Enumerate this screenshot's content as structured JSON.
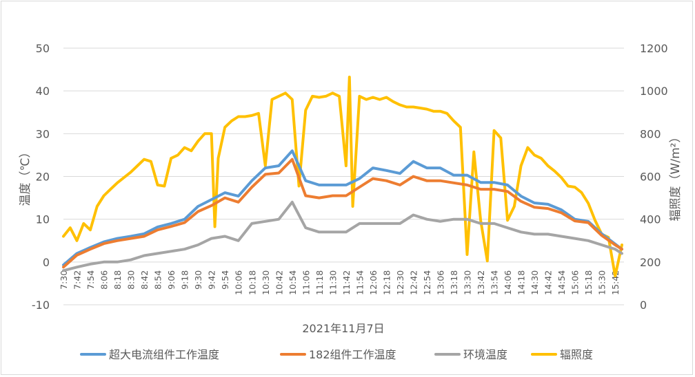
{
  "chart_data": {
    "type": "line",
    "xlabel": "2021年11月7日",
    "ylabel_left": "温度（℃）",
    "ylabel_right": "辐照度（W/m²）",
    "ylim_left": [
      -10,
      50
    ],
    "yticks_left": [
      -10,
      0,
      10,
      20,
      30,
      40,
      50
    ],
    "ylim_right": [
      0,
      1200
    ],
    "yticks_right": [
      0,
      200,
      400,
      600,
      800,
      1000,
      1200
    ],
    "grid": true,
    "legend_position": "bottom",
    "x_tick_labels": [
      "7:30",
      "7:42",
      "7:54",
      "8:06",
      "8:18",
      "8:30",
      "8:42",
      "8:54",
      "9:06",
      "9:18",
      "9:30",
      "9:42",
      "9:54",
      "10:06",
      "10:18",
      "10:30",
      "10:42",
      "10:54",
      "11:06",
      "11:18",
      "11:30",
      "11:42",
      "11:54",
      "12:06",
      "12:18",
      "12:30",
      "12:42",
      "12:54",
      "13:06",
      "13:18",
      "13:30",
      "13:42",
      "13:54",
      "14:06",
      "14:18",
      "14:30",
      "14:42",
      "14:54",
      "15:06",
      "15:18",
      "15:30",
      "15:42"
    ],
    "x_range": [
      "7:30",
      "15:48"
    ],
    "temp_x": [
      "7:30",
      "7:42",
      "7:54",
      "8:06",
      "8:18",
      "8:30",
      "8:42",
      "8:54",
      "9:06",
      "9:18",
      "9:30",
      "9:42",
      "9:54",
      "10:06",
      "10:18",
      "10:30",
      "10:42",
      "10:54",
      "11:06",
      "11:18",
      "11:30",
      "11:42",
      "11:54",
      "12:06",
      "12:18",
      "12:30",
      "12:42",
      "12:54",
      "13:06",
      "13:18",
      "13:30",
      "13:42",
      "13:54",
      "14:06",
      "14:18",
      "14:30",
      "14:42",
      "14:54",
      "15:06",
      "15:18",
      "15:30",
      "15:42",
      "15:48"
    ],
    "irr_x": [
      "7:30",
      "7:36",
      "7:42",
      "7:48",
      "7:54",
      "8:00",
      "8:06",
      "8:12",
      "8:18",
      "8:24",
      "8:30",
      "8:36",
      "8:42",
      "8:48",
      "8:54",
      "9:00",
      "9:06",
      "9:12",
      "9:18",
      "9:24",
      "9:30",
      "9:36",
      "9:42",
      "9:45",
      "9:48",
      "9:54",
      "10:00",
      "10:06",
      "10:12",
      "10:18",
      "10:24",
      "10:30",
      "10:36",
      "10:42",
      "10:48",
      "10:54",
      "11:00",
      "11:06",
      "11:12",
      "11:18",
      "11:24",
      "11:30",
      "11:36",
      "11:42",
      "11:45",
      "11:48",
      "11:54",
      "12:00",
      "12:06",
      "12:12",
      "12:18",
      "12:24",
      "12:30",
      "12:36",
      "12:42",
      "12:48",
      "12:54",
      "13:00",
      "13:06",
      "13:12",
      "13:18",
      "13:24",
      "13:30",
      "13:36",
      "13:42",
      "13:48",
      "13:54",
      "14:00",
      "14:06",
      "14:12",
      "14:18",
      "14:24",
      "14:30",
      "14:36",
      "14:42",
      "14:48",
      "14:54",
      "15:00",
      "15:06",
      "15:12",
      "15:18",
      "15:24",
      "15:30",
      "15:36",
      "15:42",
      "15:48"
    ],
    "series": [
      {
        "name": "超大电流组件工作温度",
        "axis": "left",
        "color": "#5B9BD5",
        "x": "temp_x",
        "values": [
          -0.7,
          2,
          3.4,
          4.7,
          5.5,
          6,
          6.6,
          8.2,
          9,
          10,
          13,
          14.6,
          16.2,
          15.4,
          19,
          22,
          22.5,
          26,
          19,
          18,
          18,
          18,
          19.5,
          22,
          21.4,
          20.7,
          23.5,
          22,
          22,
          20.3,
          20.3,
          18.6,
          18.6,
          18,
          15.4,
          13.8,
          13.5,
          12.2,
          10,
          9.5,
          6.6,
          4.2,
          3
        ]
      },
      {
        "name": "182组件工作温度",
        "axis": "left",
        "color": "#ED7D31",
        "x": "temp_x",
        "values": [
          -1.2,
          1.6,
          3,
          4.3,
          5,
          5.5,
          6,
          7.5,
          8.3,
          9.2,
          11.8,
          13.2,
          15,
          14,
          17.5,
          20.5,
          20.8,
          24,
          15.5,
          15,
          15.5,
          15.5,
          17.5,
          19.5,
          19,
          18,
          20,
          19,
          19,
          18.5,
          18,
          17,
          17,
          16.5,
          14.2,
          12.8,
          12.5,
          11.5,
          9.6,
          9.2,
          6.2,
          4,
          3
        ]
      },
      {
        "name": "环境温度",
        "axis": "left",
        "color": "#A5A5A5",
        "x": "temp_x",
        "values": [
          -2,
          -1.2,
          -0.5,
          0,
          0,
          0.5,
          1.5,
          2,
          2.5,
          3,
          4,
          5.5,
          6,
          5,
          9,
          9.5,
          10,
          14,
          8,
          7,
          7,
          7,
          9,
          9,
          9,
          9,
          11,
          10,
          9.5,
          10,
          10,
          9,
          9,
          8,
          7,
          6.5,
          6.5,
          6,
          5.5,
          5,
          4,
          3,
          2
        ]
      },
      {
        "name": "辐照度",
        "axis": "right",
        "color": "#FFC000",
        "x": "irr_x",
        "values": [
          320,
          360,
          300,
          380,
          350,
          460,
          510,
          540,
          570,
          595,
          620,
          650,
          680,
          670,
          560,
          555,
          685,
          700,
          735,
          720,
          765,
          800,
          800,
          365,
          685,
          830,
          860,
          880,
          880,
          885,
          895,
          650,
          960,
          975,
          990,
          960,
          555,
          910,
          975,
          970,
          975,
          990,
          975,
          650,
          1065,
          460,
          975,
          960,
          970,
          960,
          970,
          950,
          935,
          925,
          925,
          920,
          915,
          905,
          905,
          895,
          860,
          830,
          235,
          715,
          395,
          205,
          815,
          780,
          395,
          460,
          650,
          735,
          700,
          685,
          650,
          625,
          595,
          555,
          550,
          525,
          475,
          395,
          330,
          315,
          135,
          280
        ]
      }
    ]
  }
}
